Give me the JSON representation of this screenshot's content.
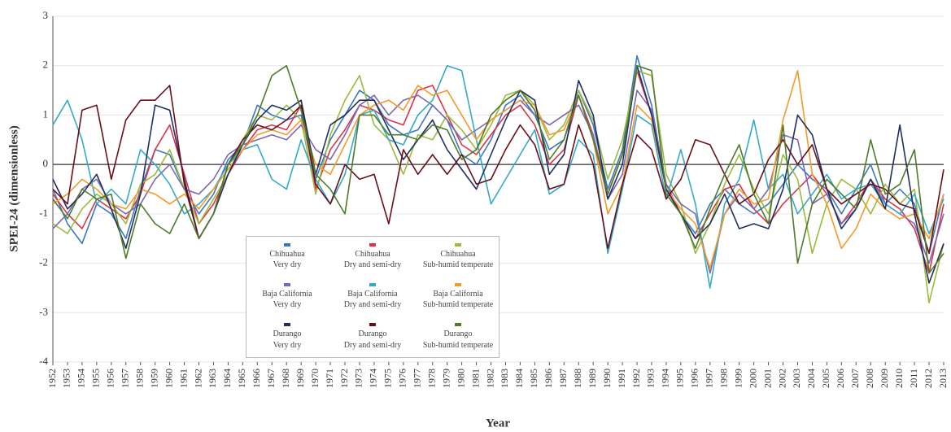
{
  "chart_data": {
    "type": "line",
    "y_label": "SPEI-24 (dimensionless)",
    "x_label": "Year",
    "x": [
      1952,
      1953,
      1954,
      1955,
      1956,
      1957,
      1958,
      1959,
      1960,
      1961,
      1962,
      1963,
      1964,
      1965,
      1966,
      1967,
      1968,
      1969,
      1970,
      1971,
      1972,
      1973,
      1974,
      1975,
      1976,
      1977,
      1978,
      1979,
      1980,
      1981,
      1982,
      1983,
      1984,
      1985,
      1986,
      1987,
      1988,
      1989,
      1990,
      1991,
      1992,
      1993,
      1994,
      1995,
      1996,
      1997,
      1998,
      1999,
      2000,
      2001,
      2002,
      2003,
      2004,
      2005,
      2006,
      2007,
      2008,
      2009,
      2010,
      2011,
      2012,
      2013
    ],
    "xlim": [
      1952,
      2013
    ],
    "xticks": [
      1952,
      1953,
      1954,
      1955,
      1956,
      1957,
      1958,
      1959,
      1960,
      1961,
      1962,
      1963,
      1964,
      1965,
      1966,
      1967,
      1968,
      1969,
      1970,
      1971,
      1972,
      1973,
      1974,
      1975,
      1976,
      1977,
      1978,
      1979,
      1980,
      1981,
      1982,
      1983,
      1984,
      1985,
      1986,
      1987,
      1988,
      1989,
      1990,
      1991,
      1992,
      1993,
      1994,
      1995,
      1996,
      1997,
      1998,
      1999,
      2000,
      2001,
      2002,
      2003,
      2004,
      2005,
      2006,
      2007,
      2008,
      2009,
      2010,
      2011,
      2012,
      2013
    ],
    "ylim": [
      -4,
      3
    ],
    "yticks": [
      -4,
      -3,
      -2,
      -1,
      0,
      1,
      2,
      3
    ],
    "grid": true,
    "series": [
      {
        "name": "Chihuahua\nVery dry",
        "color": "#3a78c4",
        "values": [
          -0.5,
          -1.2,
          -1.6,
          -0.8,
          -1.0,
          -1.5,
          -0.5,
          0.3,
          0.2,
          -0.5,
          -1.0,
          -0.6,
          0.1,
          0.4,
          1.2,
          1.0,
          0.9,
          1.0,
          -0.3,
          0.5,
          1.0,
          1.5,
          1.3,
          0.8,
          0.6,
          0.7,
          1.2,
          0.9,
          0.2,
          0.0,
          0.5,
          1.2,
          1.4,
          1.0,
          0.3,
          0.5,
          1.5,
          0.8,
          -0.5,
          0.3,
          2.2,
          1.2,
          -0.5,
          -1.0,
          -1.4,
          -0.8,
          -0.5,
          -0.8,
          -1.0,
          -0.8,
          -0.4,
          0.0,
          -0.3,
          -0.5,
          -1.0,
          -0.5,
          0.0,
          -0.8,
          -0.5,
          -0.8,
          -1.8,
          -0.6
        ]
      },
      {
        "name": "Chihuahua\nDry and semi-dry",
        "color": "#d9344a",
        "values": [
          -0.6,
          -1.0,
          -1.3,
          -0.7,
          -0.9,
          -1.1,
          -0.6,
          0.3,
          0.8,
          -0.2,
          -1.2,
          -0.8,
          -0.2,
          0.3,
          0.7,
          0.8,
          0.7,
          1.2,
          -0.5,
          0.3,
          0.7,
          1.2,
          1.1,
          0.9,
          0.8,
          1.5,
          1.6,
          1.0,
          0.4,
          0.2,
          0.6,
          1.0,
          1.2,
          0.8,
          0.0,
          0.3,
          1.4,
          0.6,
          -0.6,
          0.2,
          1.9,
          1.0,
          -0.4,
          -1.0,
          -1.5,
          -1.0,
          -0.5,
          -0.4,
          -0.9,
          -1.2,
          -0.8,
          -0.5,
          -0.2,
          -0.6,
          -1.2,
          -0.8,
          -0.3,
          -0.7,
          -0.9,
          -1.3,
          -2.2,
          -0.8
        ]
      },
      {
        "name": "Chihuahua\nSub-humid temperate",
        "color": "#9bbb3a",
        "values": [
          -1.2,
          -1.4,
          -0.9,
          -0.6,
          -0.8,
          -1.2,
          -0.4,
          -0.2,
          0.3,
          -0.5,
          -1.2,
          -0.7,
          -0.2,
          0.5,
          1.0,
          0.9,
          1.2,
          0.9,
          -0.6,
          0.6,
          1.3,
          1.8,
          0.8,
          0.5,
          -0.2,
          0.6,
          0.5,
          1.0,
          0.7,
          0.3,
          0.8,
          1.4,
          1.5,
          1.2,
          0.5,
          0.8,
          1.5,
          0.9,
          -0.3,
          0.5,
          1.9,
          1.8,
          -0.2,
          -0.8,
          -1.8,
          -1.2,
          -0.4,
          0.2,
          -0.5,
          -1.0,
          0.2,
          -0.3,
          -1.8,
          -0.8,
          -0.3,
          -0.5,
          -1.0,
          -0.4,
          -0.8,
          -0.5,
          -2.8,
          -1.6
        ]
      },
      {
        "name": "Baja California\nVery dry",
        "color": "#7b68b0",
        "values": [
          -1.3,
          -1.0,
          -0.5,
          -0.3,
          -0.8,
          -1.0,
          -0.8,
          -0.3,
          0.0,
          -0.5,
          -0.6,
          -0.3,
          0.2,
          0.4,
          0.5,
          0.6,
          0.5,
          0.8,
          0.3,
          0.1,
          0.6,
          1.2,
          1.4,
          1.0,
          1.3,
          1.4,
          1.2,
          0.9,
          0.5,
          0.7,
          0.9,
          1.1,
          1.3,
          1.0,
          0.8,
          1.0,
          1.2,
          0.6,
          -0.7,
          -0.2,
          1.5,
          1.1,
          -0.4,
          -0.8,
          -1.0,
          -2.2,
          -1.0,
          -0.6,
          -0.9,
          -0.5,
          0.6,
          0.5,
          -0.8,
          -0.6,
          -1.2,
          -0.9,
          -0.3,
          -0.8,
          -1.0,
          -1.2,
          -2.0,
          -1.0
        ]
      },
      {
        "name": "Baja California\nDry and semi-dry",
        "color": "#35a9c8",
        "values": [
          0.8,
          1.3,
          0.5,
          -0.8,
          -0.5,
          -0.8,
          0.3,
          0.0,
          -0.4,
          -1.0,
          -0.8,
          -0.5,
          0.0,
          0.3,
          0.4,
          -0.3,
          -0.5,
          0.5,
          -0.3,
          -0.8,
          -0.2,
          1.0,
          1.1,
          0.5,
          0.4,
          1.0,
          1.3,
          2.0,
          1.9,
          0.5,
          -0.8,
          -0.3,
          0.2,
          0.7,
          -0.6,
          -0.4,
          0.5,
          0.2,
          -1.8,
          -0.5,
          1.0,
          0.8,
          -0.7,
          0.3,
          -0.8,
          -2.5,
          -0.8,
          -0.3,
          0.9,
          -0.5,
          -0.2,
          -1.0,
          -0.6,
          -0.2,
          -0.7,
          -0.5,
          -0.4,
          -0.8,
          -1.0,
          -0.6,
          -1.4,
          -0.7
        ]
      },
      {
        "name": "Baja California\nSub-humid temperate",
        "color": "#f39a2c",
        "values": [
          -0.8,
          -0.6,
          -0.3,
          -0.5,
          -0.8,
          -0.9,
          -0.5,
          -0.6,
          -0.8,
          -0.6,
          -0.9,
          -0.5,
          -0.1,
          0.3,
          0.6,
          0.7,
          0.6,
          0.9,
          0.0,
          -0.2,
          0.4,
          1.0,
          1.2,
          1.3,
          1.1,
          1.6,
          1.4,
          1.5,
          1.0,
          0.5,
          0.9,
          1.1,
          1.3,
          1.2,
          0.6,
          0.7,
          1.4,
          0.5,
          -1.0,
          -0.4,
          1.2,
          0.9,
          -0.5,
          -0.9,
          -1.2,
          -2.1,
          -1.0,
          -0.5,
          -0.8,
          -0.7,
          0.9,
          1.9,
          -0.2,
          -0.8,
          -1.7,
          -1.3,
          -0.6,
          -0.9,
          -1.1,
          -1.0,
          -1.5,
          -0.6
        ]
      },
      {
        "name": "Durango\nVery dry",
        "color": "#1f2f5f",
        "values": [
          -0.3,
          -0.9,
          -0.6,
          -0.2,
          -0.9,
          -1.7,
          -0.6,
          1.2,
          1.1,
          -0.3,
          -1.5,
          -1.0,
          -0.2,
          0.4,
          0.9,
          1.2,
          1.1,
          1.3,
          -0.2,
          0.8,
          1.0,
          1.3,
          1.3,
          0.7,
          0.1,
          0.5,
          0.9,
          0.3,
          -0.1,
          -0.5,
          0.2,
          0.9,
          1.5,
          1.3,
          -0.2,
          0.2,
          1.7,
          1.0,
          -0.7,
          0.0,
          2.0,
          1.0,
          -0.5,
          -1.0,
          -1.5,
          -1.2,
          -0.6,
          -1.3,
          -1.2,
          -1.3,
          -0.5,
          1.0,
          0.6,
          -0.5,
          -1.3,
          -0.9,
          -0.3,
          -0.9,
          0.8,
          -1.0,
          -2.4,
          -1.6
        ]
      },
      {
        "name": "Durango\nDry and semi-dry",
        "color": "#6b0f1a",
        "values": [
          -0.5,
          -0.8,
          1.1,
          1.2,
          -0.3,
          0.9,
          1.3,
          1.3,
          1.6,
          -0.4,
          -1.5,
          -1.0,
          0.0,
          0.5,
          0.8,
          0.7,
          0.9,
          1.2,
          -0.4,
          -0.8,
          0.0,
          -0.3,
          -0.2,
          -1.2,
          0.3,
          -0.2,
          0.2,
          -0.2,
          0.2,
          -0.4,
          -0.3,
          0.3,
          0.8,
          0.4,
          -0.5,
          -0.4,
          0.8,
          0.0,
          -1.7,
          -0.4,
          0.6,
          0.3,
          -0.7,
          -0.3,
          0.5,
          0.4,
          -0.2,
          -0.8,
          -0.6,
          0.1,
          0.5,
          0.0,
          0.4,
          -0.5,
          -0.8,
          -0.6,
          -0.4,
          -0.5,
          -0.8,
          -0.9,
          -1.8,
          -0.1
        ]
      },
      {
        "name": "Durango\nSub-humid temperate",
        "color": "#4f7a2a",
        "values": [
          -0.7,
          -1.1,
          -0.5,
          -0.7,
          -0.6,
          -1.9,
          -0.8,
          -1.2,
          -1.4,
          -0.8,
          -1.5,
          -1.0,
          0.0,
          0.4,
          1.0,
          1.8,
          2.0,
          1.1,
          -0.2,
          -0.5,
          -1.0,
          1.0,
          1.0,
          0.6,
          0.6,
          0.5,
          0.8,
          0.7,
          0.1,
          0.3,
          1.0,
          1.3,
          1.5,
          1.1,
          0.1,
          0.5,
          1.4,
          0.5,
          -0.6,
          0.2,
          2.0,
          1.9,
          -0.6,
          -1.0,
          -1.7,
          -0.9,
          -0.2,
          0.4,
          -0.6,
          -1.2,
          0.8,
          -2.0,
          -0.8,
          -0.3,
          -0.6,
          -0.9,
          0.5,
          -0.6,
          -0.4,
          0.3,
          -2.2,
          -1.8
        ]
      }
    ]
  }
}
